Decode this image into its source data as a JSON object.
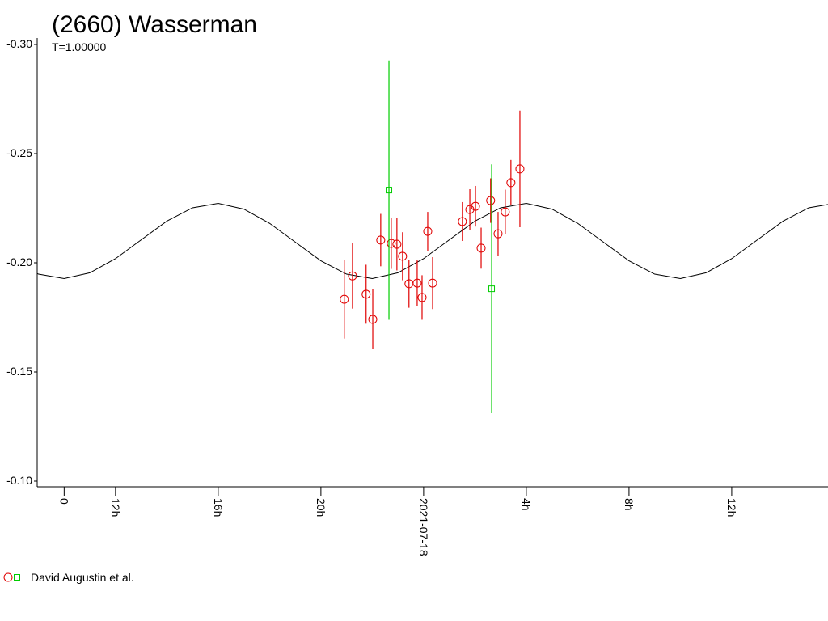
{
  "chart_data": {
    "type": "scatter",
    "title": "(2660) Wasserman",
    "subtitle": "T=1.00000",
    "xlim": [
      -15.05,
      15.75
    ],
    "ylim": [
      -0.3,
      -0.1
    ],
    "xticks": [
      {
        "value": -14,
        "label": "0"
      },
      {
        "value": -12,
        "label": "12h"
      },
      {
        "value": -8,
        "label": "16h"
      },
      {
        "value": -4,
        "label": "20h"
      },
      {
        "value": 0,
        "label": "2021-07-18"
      },
      {
        "value": 4,
        "label": "4h"
      },
      {
        "value": 8,
        "label": "8h"
      },
      {
        "value": 12,
        "label": "12h"
      }
    ],
    "yticks": [
      {
        "value": -0.3,
        "label": "-0.30"
      },
      {
        "value": -0.25,
        "label": "-0.25"
      },
      {
        "value": -0.2,
        "label": "-0.20"
      },
      {
        "value": -0.15,
        "label": "-0.15"
      },
      {
        "value": -0.1,
        "label": "-0.10"
      }
    ],
    "series": [
      {
        "name": "David Augustin et al.",
        "color": "#e00000",
        "marker": "circle",
        "x": [
          -3.09,
          -2.77,
          -2.24,
          -1.98,
          -1.67,
          -1.26,
          -1.04,
          -0.82,
          -0.57,
          -0.25,
          -0.06,
          0.16,
          0.35,
          1.51,
          1.8,
          2.02,
          2.24,
          2.61,
          2.9,
          3.18,
          3.4,
          3.75
        ],
        "values": [
          -0.1833,
          -0.194,
          -0.1856,
          -0.1741,
          -0.2104,
          -0.2089,
          -0.2085,
          -0.203,
          -0.1904,
          -0.1907,
          -0.1841,
          -0.2144,
          -0.1907,
          -0.2189,
          -0.2244,
          -0.2259,
          -0.2067,
          -0.2285,
          -0.2133,
          -0.2233,
          -0.2367,
          -0.243
        ],
        "errors": [
          0.018,
          0.015,
          0.0135,
          0.0137,
          0.012,
          0.0117,
          0.012,
          0.011,
          0.011,
          0.0104,
          0.0102,
          0.0089,
          0.0119,
          0.0089,
          0.0093,
          0.0093,
          0.0094,
          0.0102,
          0.01,
          0.0102,
          0.0104,
          0.0267
        ]
      },
      {
        "color": "#00cc00",
        "marker": "square",
        "x": [
          -1.35,
          2.65
        ],
        "values": [
          -0.2333,
          -0.1881
        ],
        "errors": [
          0.0594,
          0.057
        ]
      }
    ],
    "model": {
      "color": "#000000",
      "x": [
        -16,
        -15,
        -14,
        -13,
        -12,
        -11,
        -10,
        -9,
        -8,
        -7,
        -6,
        -5,
        -4,
        -3,
        -2,
        -1,
        0,
        1,
        2,
        3,
        4,
        5,
        6,
        7,
        8,
        9,
        10,
        11,
        12,
        13,
        14,
        15,
        16
      ],
      "values": [
        -0.2009,
        -0.1948,
        -0.1928,
        -0.1954,
        -0.2019,
        -0.2105,
        -0.2191,
        -0.2252,
        -0.2272,
        -0.2246,
        -0.2181,
        -0.2095,
        -0.2009,
        -0.1948,
        -0.1928,
        -0.1954,
        -0.2019,
        -0.2105,
        -0.2191,
        -0.2252,
        -0.2272,
        -0.2246,
        -0.2181,
        -0.2095,
        -0.2009,
        -0.1948,
        -0.1928,
        -0.1954,
        -0.2019,
        -0.2105,
        -0.2191,
        -0.2252,
        -0.2272
      ]
    }
  }
}
